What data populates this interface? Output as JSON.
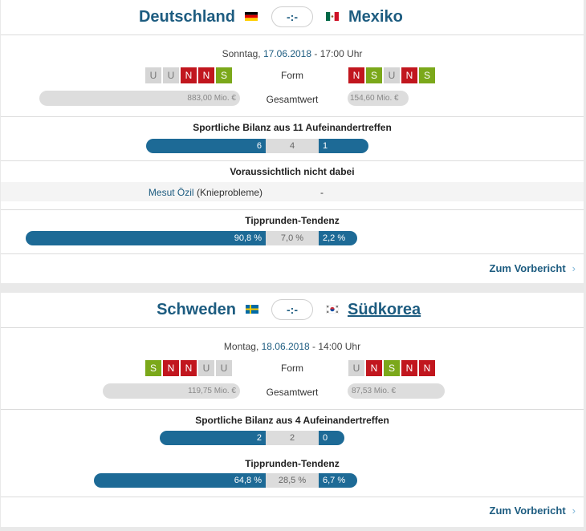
{
  "matches": [
    {
      "home": {
        "name": "Deutschland",
        "flag": "germany-flag",
        "form": [
          "U",
          "U",
          "N",
          "N",
          "S"
        ],
        "market_value": "883,00 Mio. €"
      },
      "away": {
        "name": "Mexiko",
        "flag": "mexico-flag",
        "form": [
          "N",
          "S",
          "U",
          "N",
          "S"
        ],
        "market_value": "154,60 Mio. €"
      },
      "score": "-:-",
      "date_weekday": "Sonntag,",
      "date": "17.06.2018",
      "time_sep": "-",
      "time": "17:00 Uhr",
      "form_label": "Form",
      "value_label": "Gesamtwert",
      "record_title": "Sportliche Bilanz aus 11 Aufeinandertreffen",
      "record": {
        "home_wins": "6",
        "draws": "4",
        "away_wins": "1"
      },
      "absent_title": "Voraussichtlich nicht dabei",
      "absent": {
        "home_player": "Mesut Özil",
        "home_reason": "(Knieprobleme)",
        "away": "-"
      },
      "tendency_title": "Tipprunden-Tendenz",
      "tendency": {
        "home": "90,8 %",
        "draw": "7,0 %",
        "away": "2,2 %"
      },
      "tendency_values": {
        "home": 90.8,
        "draw": 7.0,
        "away": 2.2
      },
      "preview_link": "Zum Vorbericht",
      "chevron": "›"
    },
    {
      "home": {
        "name": "Schweden",
        "flag": "sweden-flag",
        "form": [
          "S",
          "N",
          "N",
          "U",
          "U"
        ],
        "market_value": "119,75 Mio. €"
      },
      "away": {
        "name": "Südkorea",
        "flag": "south-korea-flag",
        "form": [
          "U",
          "N",
          "S",
          "N",
          "N"
        ],
        "market_value": "87,53 Mio. €"
      },
      "score": "-:-",
      "date_weekday": "Montag,",
      "date": "18.06.2018",
      "time_sep": "-",
      "time": "14:00 Uhr",
      "form_label": "Form",
      "value_label": "Gesamtwert",
      "record_title": "Sportliche Bilanz aus 4 Aufeinandertreffen",
      "record": {
        "home_wins": "2",
        "draws": "2",
        "away_wins": "0"
      },
      "tendency_title": "Tipprunden-Tendenz",
      "tendency": {
        "home": "64,8 %",
        "draw": "28,5 %",
        "away": "6,7 %"
      },
      "tendency_values": {
        "home": 64.8,
        "draw": 28.5,
        "away": 6.7
      },
      "preview_link": "Zum Vorbericht",
      "chevron": "›"
    }
  ],
  "colors": {
    "accent": "#1d5c80",
    "bar_blue": "#1d6a96",
    "form_win": "#7ba81a",
    "form_loss": "#c1161e",
    "form_draw": "#d5d5d5"
  }
}
